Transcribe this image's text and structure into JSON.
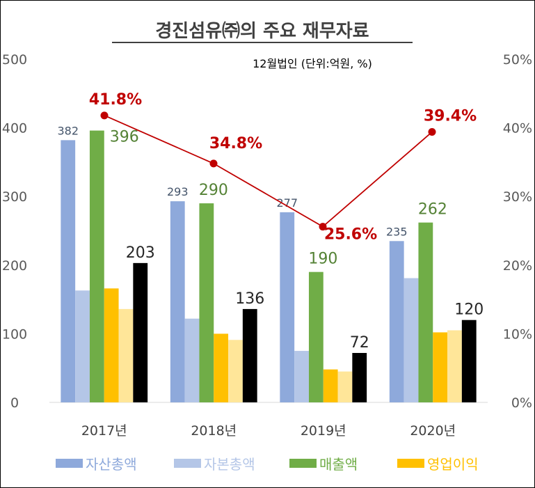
{
  "chart_data": {
    "type": "bar",
    "title": "경진섬유㈜의 주요 재무자료",
    "subtitle": "12월법인 (단위:억원, %)",
    "categories": [
      "2017년",
      "2018년",
      "2019년",
      "2020년"
    ],
    "ylim": [
      0,
      500
    ],
    "yticks": [
      "0",
      "100",
      "200",
      "300",
      "400",
      "500"
    ],
    "y2lim": [
      0,
      50
    ],
    "y2ticks": [
      "0%",
      "10%",
      "20%",
      "30%",
      "40%",
      "50%"
    ],
    "grid": false,
    "legend_position": "bottom",
    "series": [
      {
        "name": "자산총액",
        "values": [
          382,
          293,
          277,
          235
        ],
        "labels": [
          "382",
          "293",
          "277",
          "235"
        ],
        "color": "#8EA9DB",
        "label_color": "#44546A",
        "label_size": 16
      },
      {
        "name": "자본총액",
        "values": [
          163,
          122,
          75,
          181
        ],
        "color": "#B4C6E7"
      },
      {
        "name": "매출액",
        "values": [
          396,
          290,
          190,
          262
        ],
        "labels": [
          "396",
          "290",
          "190",
          "262"
        ],
        "color": "#70AD47",
        "label_color": "#548235",
        "label_size": 22
      },
      {
        "name": "영업이익",
        "values": [
          166,
          100,
          48,
          102
        ],
        "color": "#FFC000"
      },
      {
        "name": "",
        "values": [
          136,
          91,
          45,
          105
        ],
        "color": "#FFE699"
      },
      {
        "name": "",
        "values": [
          203,
          136,
          72,
          120
        ],
        "labels": [
          "203",
          "136",
          "72",
          "120"
        ],
        "color": "#000000",
        "label_color": "#262626",
        "label_size": 22
      }
    ],
    "line_series": {
      "axis": "secondary",
      "values": [
        41.8,
        34.8,
        25.6,
        39.4
      ],
      "labels": [
        "41.8%",
        "34.8%",
        "25.6%",
        "39.4%"
      ],
      "color": "#C00000"
    }
  }
}
